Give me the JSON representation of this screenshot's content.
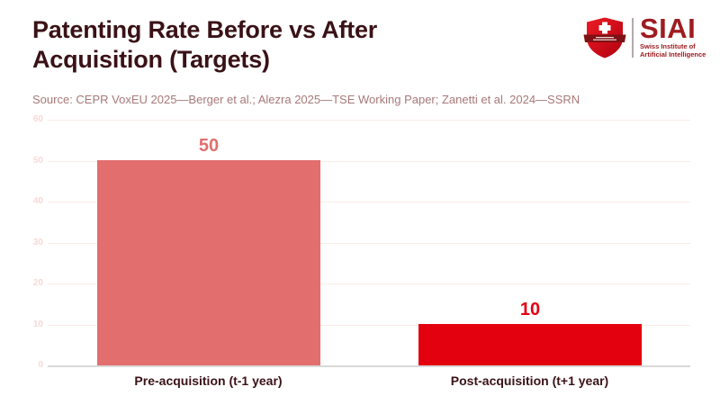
{
  "header": {
    "title": "Patenting Rate Before vs After Acquisition (Targets)",
    "title_lines": [
      "Patenting Rate Before vs After",
      "Acquisition (Targets)"
    ],
    "source": "Source: CEPR VoxEU 2025—Berger et al.; Alezra 2025—TSE Working Paper; Zanetti et al. 2024—SSRN"
  },
  "logo": {
    "acronym": "SIAI",
    "name_line1": "Swiss Institute of",
    "name_line2": "Artificial Intelligence"
  },
  "chart_data": {
    "type": "bar",
    "title": "Patenting Rate Before vs After Acquisition (Targets)",
    "categories": [
      "Pre-acquisition (t-1 year)",
      "Post-acquisition (t+1 year)"
    ],
    "values": [
      50,
      10
    ],
    "bar_colors": [
      "#e26e6e",
      "#e3000f"
    ],
    "value_label_colors": [
      "#e26e6e",
      "#e3000f"
    ],
    "xlabel": "",
    "ylabel": "",
    "ylim": [
      0,
      60
    ],
    "y_ticks": [
      0,
      10,
      20,
      30,
      40,
      50,
      60
    ],
    "ytick_interval": 10,
    "grid": true,
    "legend": false
  },
  "colors": {
    "title_text": "#3a1216",
    "source_text": "#a87878",
    "tick_label": "#f8d9d5",
    "gridline": "#fcebe7",
    "axis_line": "#d9d9d9",
    "logo_red": "#9e1c20",
    "shield_red": "#e3000f",
    "shield_dark": "#b00010",
    "banner_dark": "#7e1114"
  }
}
